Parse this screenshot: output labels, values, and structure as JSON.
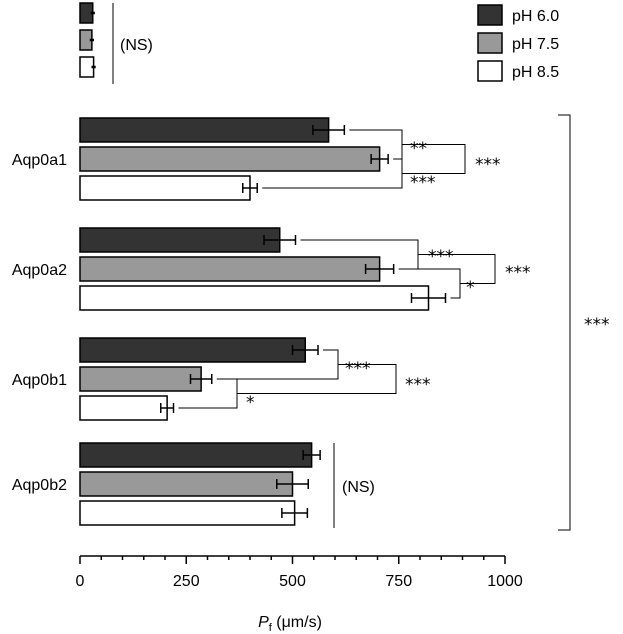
{
  "chart_data": {
    "type": "bar",
    "orientation": "horizontal",
    "categories": [
      "",
      "Aqp0a1",
      "Aqp0a2",
      "Aqp0b1",
      "Aqp0b2"
    ],
    "series": [
      {
        "name": "pH 6.0",
        "color": "#333333",
        "values": [
          30,
          585,
          470,
          530,
          545
        ],
        "errors": [
          5,
          37,
          37,
          30,
          20
        ]
      },
      {
        "name": "pH 7.5",
        "color": "#999999",
        "values": [
          28,
          705,
          705,
          285,
          500
        ],
        "errors": [
          5,
          20,
          33,
          25,
          37
        ]
      },
      {
        "name": "pH 8.5",
        "color": "#ffffff",
        "values": [
          32,
          400,
          820,
          205,
          505
        ],
        "errors": [
          5,
          17,
          40,
          15,
          30
        ]
      }
    ],
    "xlim": [
      0,
      1000
    ],
    "xticks": [
      0,
      250,
      500,
      750,
      1000
    ],
    "xtick_labels": [
      "0",
      "250",
      "500",
      "750",
      "1000"
    ],
    "xlabel": {
      "italic": "P",
      "sub": "f",
      "rest": " (μm/s)"
    },
    "legend_position": "top-right",
    "annotations": [
      {
        "group": 0,
        "text": "(NS)"
      },
      {
        "group": 1,
        "text": "**"
      },
      {
        "group": 1,
        "text": "***"
      },
      {
        "group": 1,
        "text": "***"
      },
      {
        "group": 2,
        "text": "***"
      },
      {
        "group": 2,
        "text": "*"
      },
      {
        "group": 2,
        "text": "***"
      },
      {
        "group": 3,
        "text": "***"
      },
      {
        "group": 3,
        "text": "*"
      },
      {
        "group": 3,
        "text": "***"
      },
      {
        "group": 4,
        "text": "(NS)"
      },
      {
        "group": "all",
        "text": "***"
      }
    ]
  }
}
